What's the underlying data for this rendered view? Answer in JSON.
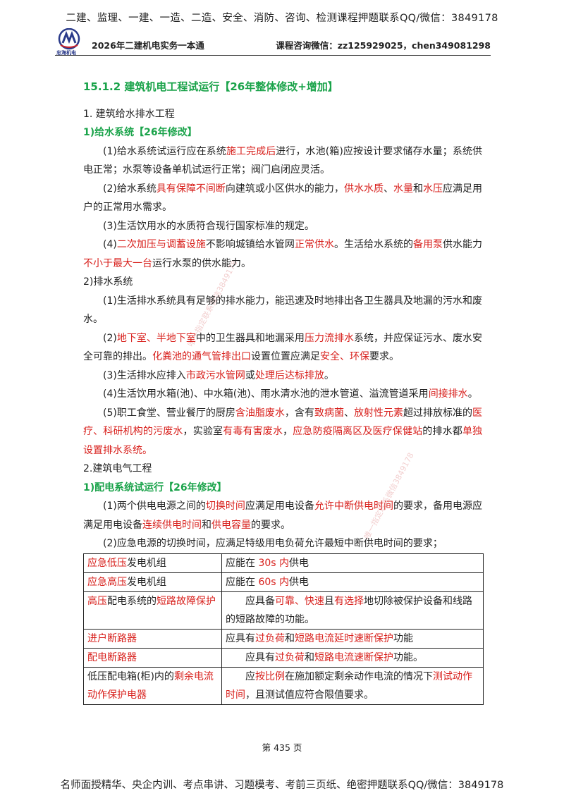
{
  "top_banner": "二建、监理、一建、一造、二造、安全、消防、咨询、检测课程押题联系QQ/微信：3849178",
  "header": {
    "logo_caption": "忠海机电",
    "left": "2026年二建机电实务一本通",
    "right": "课程咨询微信：zz125929025，chen349081298"
  },
  "section_title": "15.1.2 建筑机电工程试运行【26年整体修改+增加】",
  "part1": {
    "heading": "1. 建筑给水排水工程",
    "sub1": "1)给水系统【26年修改】",
    "p1": [
      "(1)给水系统试运行应在系统",
      "施工完成后",
      "进行，水池(箱)应按设计要求储存水量；系统供电正常；水泵等设备单机试运行正常；阀门启闭应灵活。"
    ],
    "p2": [
      "(2)给水系统",
      "具有保障不间断",
      "向建筑或小区供水的能力，",
      "供水水质",
      "、",
      "水量",
      "和",
      "水压",
      "应满足用户的正常用水需求。"
    ],
    "p3": "(3)生活饮用水的水质符合现行国家标准的规定。",
    "p4": [
      "(4)",
      "二次加压与调蓄设施",
      "不影响城镇给水管网",
      "正常供水",
      "。生活给水系统的",
      "备用泵",
      "供水能力",
      "不小于最大一台",
      "运行水泵的供水能力。"
    ],
    "sub2": "2)排水系统",
    "d1": "(1)生活排水系统具有足够的排水能力，能迅速及时地排出各卫生器具及地漏的污水和废水。",
    "d2": [
      "(2)",
      "地下室、半地下室",
      "中的卫生器具和地漏采用",
      "压力流排水",
      "系统，并应保证污水、废水安全可靠的排出。",
      "化粪池的通气管排出口",
      "设置位置应满足",
      "安全、环保",
      "要求。"
    ],
    "d3": [
      "(3)生活排水应排入",
      "市政污水管网",
      "或",
      "处理后达标排放",
      "。"
    ],
    "d4": [
      "(4)生活饮用水箱(池)、中水箱(池)、雨水清水池的泄水管道、溢流管道采用",
      "间接排水",
      "。"
    ],
    "d5": [
      "(5)职工食堂、营业餐厅的厨房",
      "含油脂废水",
      "，含有",
      "致病菌",
      "、",
      "放射性元素",
      "超过排放标准的",
      "医疗、科研机构的污废水",
      "，实验室",
      "有毒有害废水",
      "，",
      "应急防疫隔离区及医疗保健站",
      "的排水都",
      "单独设置排水系统。"
    ]
  },
  "part2": {
    "heading": "2.建筑电气工程",
    "sub1": "1)配电系统试运行【26年修改】",
    "e1": [
      "(1)两个供电电源之间的",
      "切换时间",
      "应满足用电设备",
      "允许中断供电时间",
      "的要求，备用电源应满足用电设备",
      "连续供电时间",
      "和",
      "供电容量",
      "的要求。"
    ],
    "e2": "(2)应急电源的切换时间，应满足特级用电负荷允许最短中断供电时间的要求；"
  },
  "table": {
    "rows": [
      {
        "left": [
          "",
          "应急低压",
          "发电机组"
        ],
        "right": [
          "应能在 ",
          "30s ",
          "内",
          "供电"
        ]
      },
      {
        "left": [
          "",
          "应急高压",
          "发电机组"
        ],
        "right": [
          "应能在 ",
          "60s ",
          "内",
          "供电"
        ]
      },
      {
        "left": [
          "",
          "高压",
          "配电系统的",
          "短路故障保护"
        ],
        "right": [
          "应具备",
          "可靠、快速",
          "且",
          "有选择",
          "地切除被保护设备和线路的短路故障的功能。"
        ]
      },
      {
        "left": [
          "",
          "进户断路器"
        ],
        "right": [
          "应具有",
          "过负荷",
          "和",
          "短路电流延时速断保护",
          "功能"
        ]
      },
      {
        "left": [
          "",
          "配电断路器"
        ],
        "right": [
          "应具有",
          "过负荷",
          "和",
          "短路电流速断保护",
          "功能。"
        ]
      },
      {
        "left": [
          "低压配电箱(柜)内的",
          "剩余电流动作保护电器"
        ],
        "right": [
          "应",
          "按比例",
          "在施加额定剩余动作电流的情况下",
          "测试动作时间",
          "，且测试值应符合限值要求。"
        ]
      }
    ]
  },
  "watermarks": [
    "唯一指定联系微信3849178",
    "唯一指定联系微信3849178"
  ],
  "page_number": "第 435 页",
  "bottom_banner": "名师面授精华、央企内训、考点串讲、习题模考、考前三页纸、绝密押题联系QQ/微信：3849178",
  "colors": {
    "green": "#1aa34a",
    "red": "#d8201c"
  }
}
